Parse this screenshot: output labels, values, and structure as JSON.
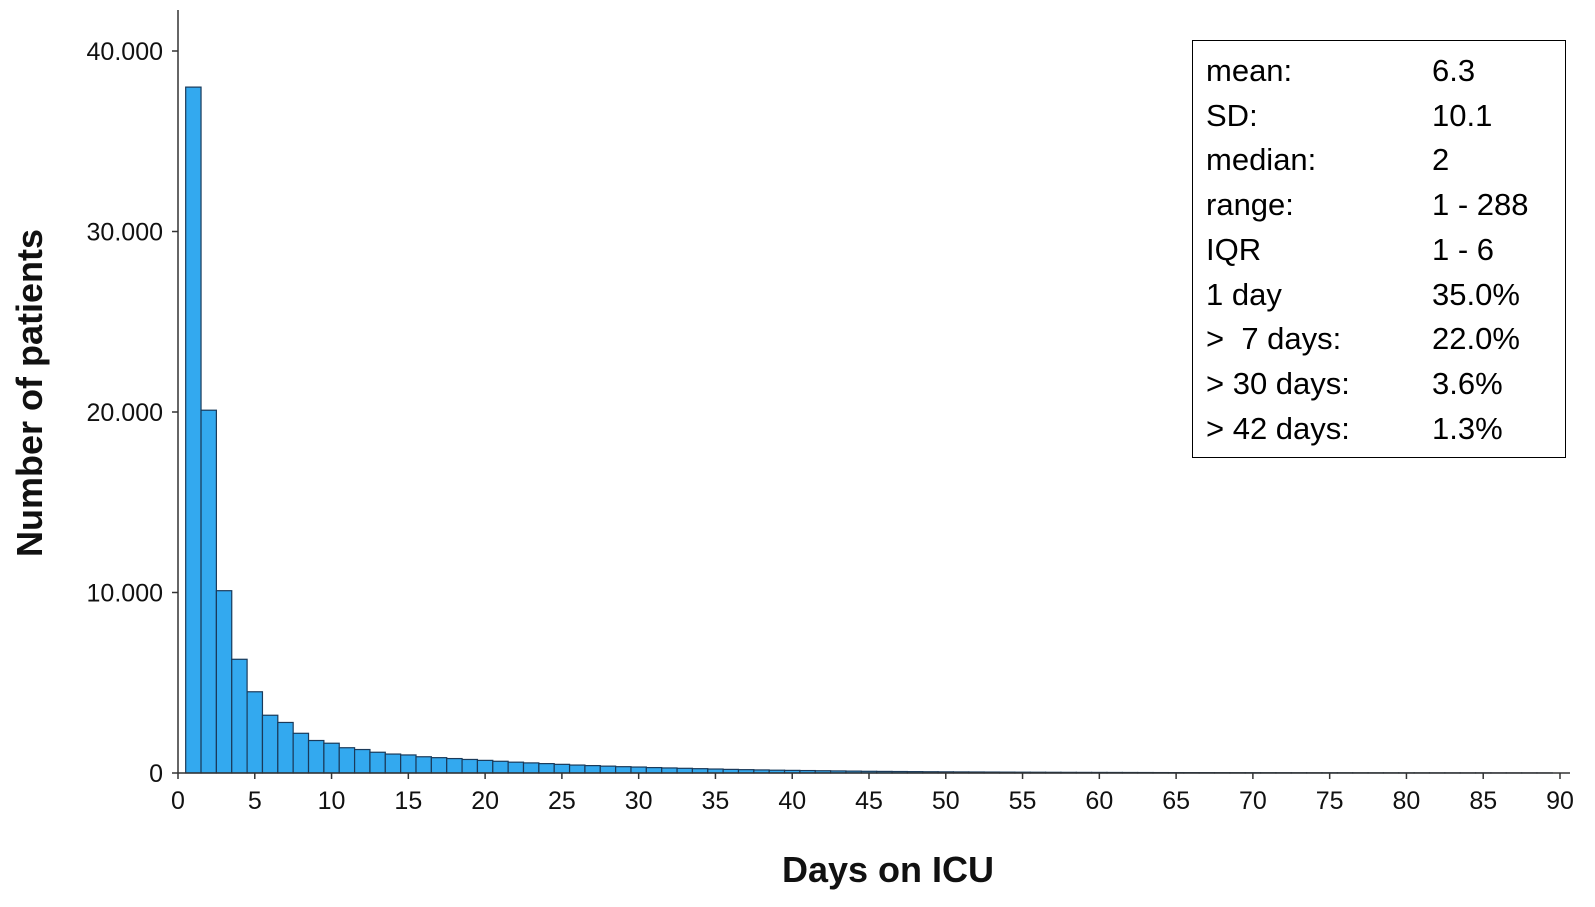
{
  "chart_data": {
    "type": "bar",
    "title": "",
    "xlabel": "Days on ICU",
    "ylabel": "Number of patients",
    "xlim": [
      0,
      90
    ],
    "ylim": [
      0,
      40000
    ],
    "x_ticks": [
      0,
      5,
      10,
      15,
      20,
      25,
      30,
      35,
      40,
      45,
      50,
      55,
      60,
      65,
      70,
      75,
      80,
      85,
      90
    ],
    "y_ticks": [
      {
        "value": 0,
        "label": "0"
      },
      {
        "value": 10000,
        "label": "10.000"
      },
      {
        "value": 20000,
        "label": "20.000"
      },
      {
        "value": 30000,
        "label": "30.000"
      },
      {
        "value": 40000,
        "label": "40.000"
      }
    ],
    "grid": false,
    "legend": false,
    "bar_color": "#33a9ef",
    "bar_edge_color": "#1a3a5a",
    "bins": [
      {
        "x": 1,
        "value": 38000
      },
      {
        "x": 2,
        "value": 20100
      },
      {
        "x": 3,
        "value": 10100
      },
      {
        "x": 4,
        "value": 6300
      },
      {
        "x": 5,
        "value": 4500
      },
      {
        "x": 6,
        "value": 3200
      },
      {
        "x": 7,
        "value": 2800
      },
      {
        "x": 8,
        "value": 2200
      },
      {
        "x": 9,
        "value": 1800
      },
      {
        "x": 10,
        "value": 1650
      },
      {
        "x": 11,
        "value": 1400
      },
      {
        "x": 12,
        "value": 1300
      },
      {
        "x": 13,
        "value": 1150
      },
      {
        "x": 14,
        "value": 1050
      },
      {
        "x": 15,
        "value": 1000
      },
      {
        "x": 16,
        "value": 900
      },
      {
        "x": 17,
        "value": 850
      },
      {
        "x": 18,
        "value": 800
      },
      {
        "x": 19,
        "value": 750
      },
      {
        "x": 20,
        "value": 700
      },
      {
        "x": 21,
        "value": 650
      },
      {
        "x": 22,
        "value": 600
      },
      {
        "x": 23,
        "value": 560
      },
      {
        "x": 24,
        "value": 520
      },
      {
        "x": 25,
        "value": 480
      },
      {
        "x": 26,
        "value": 440
      },
      {
        "x": 27,
        "value": 410
      },
      {
        "x": 28,
        "value": 380
      },
      {
        "x": 29,
        "value": 350
      },
      {
        "x": 30,
        "value": 330
      },
      {
        "x": 31,
        "value": 300
      },
      {
        "x": 32,
        "value": 280
      },
      {
        "x": 33,
        "value": 260
      },
      {
        "x": 34,
        "value": 240
      },
      {
        "x": 35,
        "value": 220
      },
      {
        "x": 36,
        "value": 200
      },
      {
        "x": 37,
        "value": 185
      },
      {
        "x": 38,
        "value": 170
      },
      {
        "x": 39,
        "value": 155
      },
      {
        "x": 40,
        "value": 145
      },
      {
        "x": 41,
        "value": 135
      },
      {
        "x": 42,
        "value": 125
      },
      {
        "x": 43,
        "value": 115
      },
      {
        "x": 44,
        "value": 105
      },
      {
        "x": 45,
        "value": 95
      },
      {
        "x": 46,
        "value": 88
      },
      {
        "x": 47,
        "value": 82
      },
      {
        "x": 48,
        "value": 76
      },
      {
        "x": 49,
        "value": 70
      },
      {
        "x": 50,
        "value": 65
      },
      {
        "x": 51,
        "value": 60
      },
      {
        "x": 52,
        "value": 56
      },
      {
        "x": 53,
        "value": 52
      },
      {
        "x": 54,
        "value": 48
      },
      {
        "x": 55,
        "value": 45
      },
      {
        "x": 56,
        "value": 42
      },
      {
        "x": 57,
        "value": 39
      },
      {
        "x": 58,
        "value": 36
      },
      {
        "x": 59,
        "value": 34
      },
      {
        "x": 60,
        "value": 32
      },
      {
        "x": 61,
        "value": 30
      },
      {
        "x": 62,
        "value": 28
      },
      {
        "x": 63,
        "value": 26
      },
      {
        "x": 64,
        "value": 24
      },
      {
        "x": 65,
        "value": 22
      },
      {
        "x": 66,
        "value": 21
      },
      {
        "x": 67,
        "value": 20
      },
      {
        "x": 68,
        "value": 19
      },
      {
        "x": 69,
        "value": 18
      },
      {
        "x": 70,
        "value": 17
      },
      {
        "x": 71,
        "value": 16
      },
      {
        "x": 72,
        "value": 15
      },
      {
        "x": 73,
        "value": 14
      },
      {
        "x": 74,
        "value": 13
      },
      {
        "x": 75,
        "value": 12
      },
      {
        "x": 76,
        "value": 12
      },
      {
        "x": 77,
        "value": 11
      },
      {
        "x": 78,
        "value": 10
      },
      {
        "x": 79,
        "value": 10
      },
      {
        "x": 80,
        "value": 9
      },
      {
        "x": 81,
        "value": 9
      },
      {
        "x": 82,
        "value": 8
      },
      {
        "x": 83,
        "value": 8
      },
      {
        "x": 84,
        "value": 7
      },
      {
        "x": 85,
        "value": 7
      },
      {
        "x": 86,
        "value": 6
      },
      {
        "x": 87,
        "value": 6
      },
      {
        "x": 88,
        "value": 6
      },
      {
        "x": 89,
        "value": 5
      }
    ],
    "annotations": [
      {
        "label": "mean:",
        "value": "6.3"
      },
      {
        "label": "SD:",
        "value": "10.1"
      },
      {
        "label": "median:",
        "value": "2"
      },
      {
        "label": "range:",
        "value": "1 - 288"
      },
      {
        "label": "IQR",
        "value": "1 - 6"
      },
      {
        "label": "1 day",
        "value": "35.0%"
      },
      {
        "label": ">  7 days:",
        "value": "22.0%"
      },
      {
        "label": "> 30 days:",
        "value": "3.6%"
      },
      {
        "label": "> 42 days:",
        "value": "1.3%"
      }
    ]
  }
}
